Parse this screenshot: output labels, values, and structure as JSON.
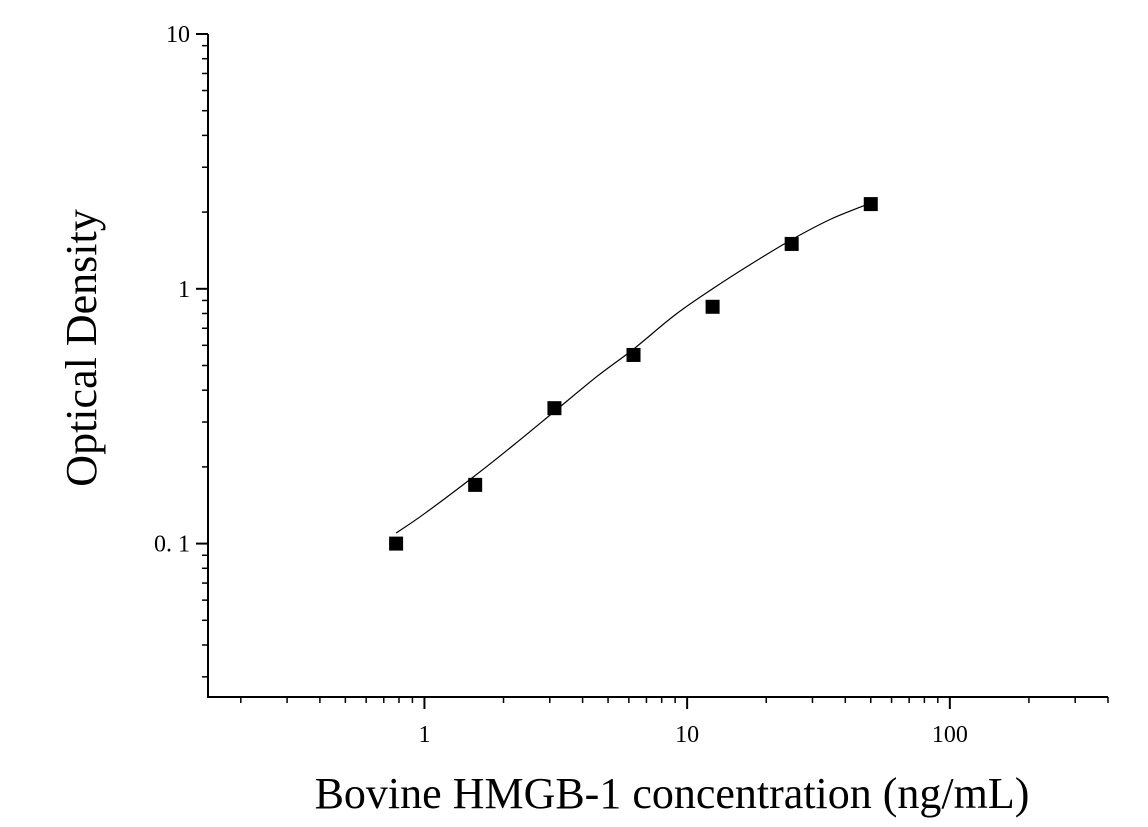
{
  "chart_data": {
    "type": "scatter",
    "title": "",
    "xlabel": "Bovine HMGB-1 concentration (ng/mL)",
    "ylabel": "Optical Density",
    "x_scale": "log",
    "y_scale": "log",
    "xlim": [
      0.15,
      400
    ],
    "ylim": [
      0.025,
      10
    ],
    "x_ticks": [
      {
        "value": 1,
        "label": "1"
      },
      {
        "value": 10,
        "label": "10"
      },
      {
        "value": 100,
        "label": "100"
      }
    ],
    "y_ticks": [
      {
        "value": 0.1,
        "label": "0. 1"
      },
      {
        "value": 1,
        "label": "1"
      },
      {
        "value": 10,
        "label": "10"
      }
    ],
    "grid": false,
    "legend": "none",
    "marker_color": "#000000",
    "line_color": "#000000",
    "series": [
      {
        "x": [
          0.78,
          1.56,
          3.125,
          6.25,
          12.5,
          25,
          50
        ],
        "y": [
          0.1,
          0.17,
          0.34,
          0.55,
          0.85,
          1.5,
          2.15
        ]
      }
    ],
    "fit_curve": {
      "x": [
        0.78,
        1.0,
        1.56,
        2.2,
        3.125,
        4.5,
        6.25,
        9.0,
        12.5,
        17.5,
        25,
        35,
        50
      ],
      "y": [
        0.11,
        0.131,
        0.185,
        0.245,
        0.33,
        0.45,
        0.58,
        0.79,
        1.0,
        1.25,
        1.56,
        1.87,
        2.17
      ]
    }
  }
}
